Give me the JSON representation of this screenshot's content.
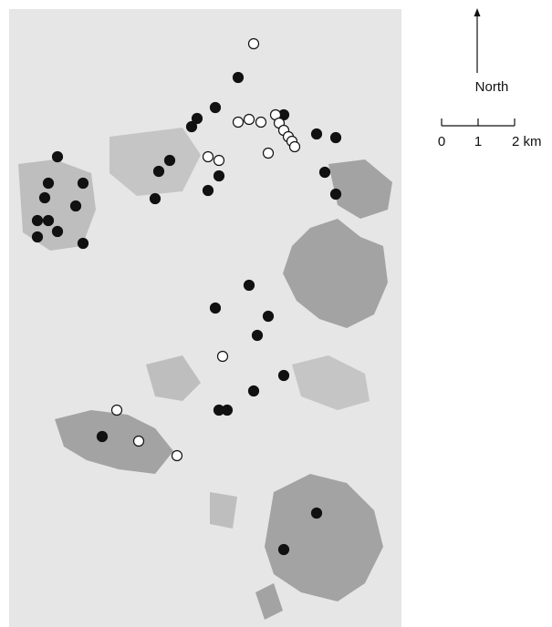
{
  "compass": {
    "label": "North"
  },
  "scale_bar": {
    "labels": [
      "0",
      "1",
      "2 km"
    ]
  }
}
